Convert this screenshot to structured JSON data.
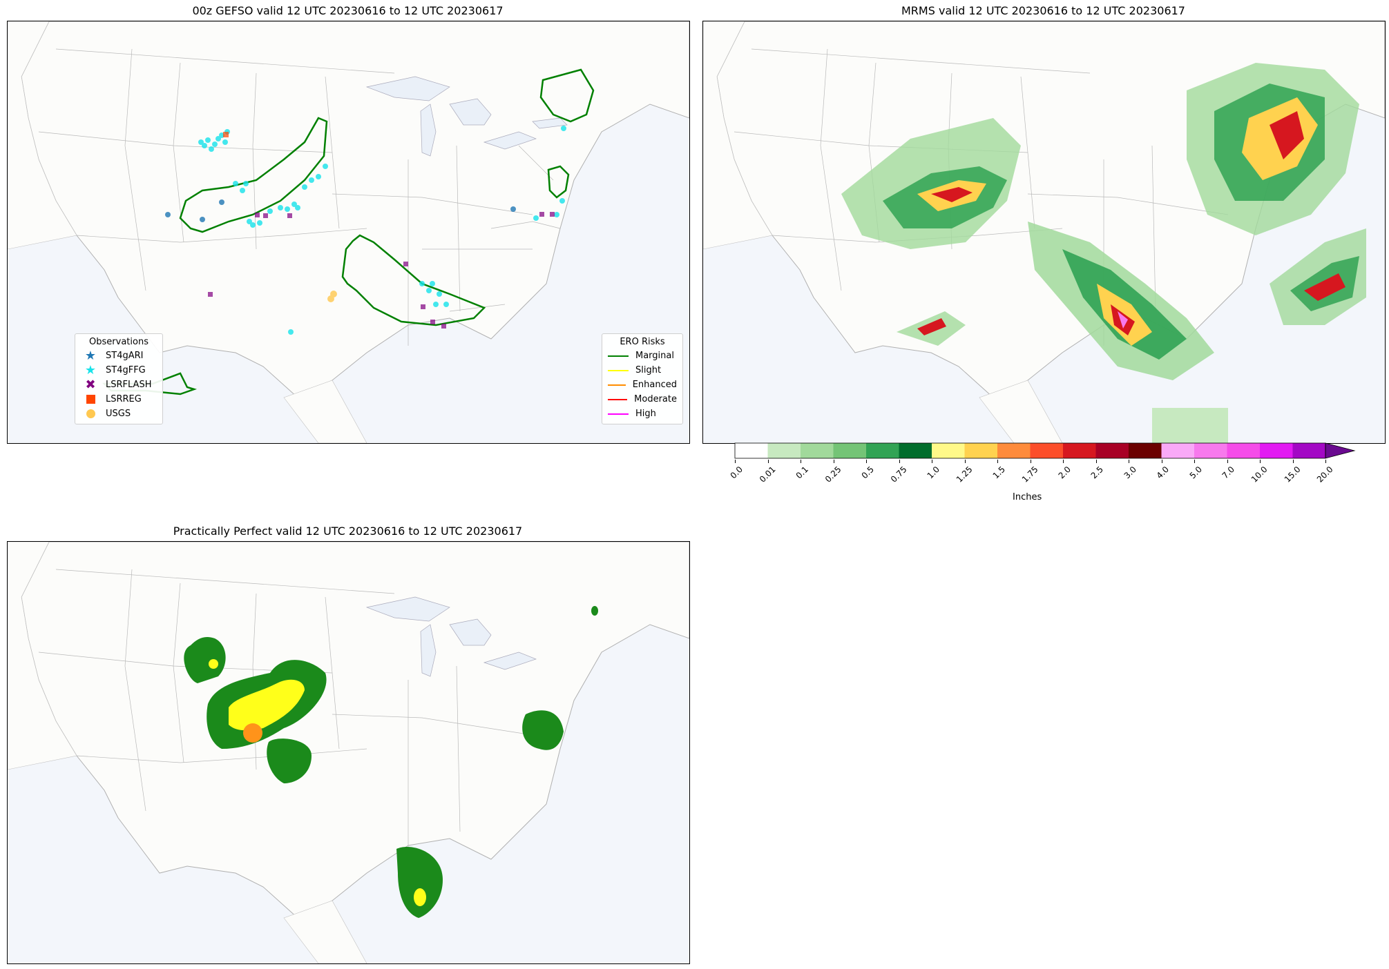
{
  "panels": {
    "gefso": {
      "title": "00z GEFSO valid 12 UTC 20230616 to 12 UTC 20230617",
      "observations_legend": {
        "title": "Observations",
        "items": [
          {
            "label": "ST4gARI",
            "color": "#1f77b4",
            "marker": "star"
          },
          {
            "label": "ST4gFFG",
            "color": "#17e3ea",
            "marker": "star"
          },
          {
            "label": "LSRFLASH",
            "color": "#800080",
            "marker": "x"
          },
          {
            "label": "LSRREG",
            "color": "#ff4500",
            "marker": "square"
          },
          {
            "label": "USGS",
            "color": "#ffc850",
            "marker": "circle"
          }
        ]
      },
      "ero_legend": {
        "title": "ERO Risks",
        "items": [
          {
            "label": "Marginal",
            "color": "#008000"
          },
          {
            "label": "Slight",
            "color": "#ffff00"
          },
          {
            "label": "Enhanced",
            "color": "#ff8c00"
          },
          {
            "label": "Moderate",
            "color": "#ff0000"
          },
          {
            "label": "High",
            "color": "#ff00ff"
          }
        ]
      }
    },
    "mrms": {
      "title": "MRMS valid 12 UTC 20230616 to 12 UTC 20230617"
    },
    "pp": {
      "title": "Practically Perfect valid 12 UTC 20230616 to 12 UTC 20230617"
    }
  },
  "colorbar": {
    "unit_label": "Inches",
    "ticks": [
      "0.0",
      "0.01",
      "0.1",
      "0.25",
      "0.5",
      "0.75",
      "1.0",
      "1.25",
      "1.5",
      "1.75",
      "2.0",
      "2.5",
      "3.0",
      "4.0",
      "5.0",
      "7.0",
      "10.0",
      "15.0",
      "20.0"
    ],
    "colors": [
      "#ffffff",
      "#c7e9c0",
      "#a1d99b",
      "#74c476",
      "#31a354",
      "#006d2c",
      "#fff989",
      "#ffd24f",
      "#fe8b3b",
      "#fc4e2a",
      "#d6171f",
      "#a80025",
      "#6b0000",
      "#f9a9f7",
      "#f779ed",
      "#f54ce9",
      "#e21af2",
      "#a308c5",
      "#6a0a90"
    ],
    "extend_color": "#6a0a90"
  }
}
